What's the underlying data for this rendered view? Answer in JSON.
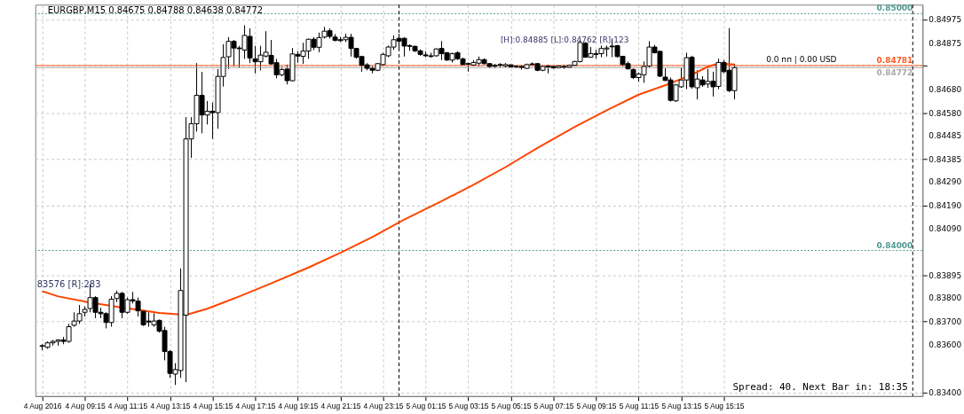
{
  "chart_data": {
    "type": "candlestick",
    "title": "EURGBP,M15  0.84675 0.84788 0.84638 0.84772",
    "x": [
      "2016-08-04T07:15",
      "2016-08-04T07:30",
      "2016-08-04T07:45",
      "2016-08-04T08:00",
      "2016-08-04T08:15",
      "2016-08-04T08:30",
      "2016-08-04T08:45",
      "2016-08-04T09:00",
      "2016-08-04T09:15",
      "2016-08-04T09:30",
      "2016-08-04T09:45",
      "2016-08-04T10:00",
      "2016-08-04T10:15",
      "2016-08-04T10:30",
      "2016-08-04T10:45",
      "2016-08-04T11:00",
      "2016-08-04T11:15",
      "2016-08-04T11:30",
      "2016-08-04T11:45",
      "2016-08-04T12:00",
      "2016-08-04T12:15",
      "2016-08-04T12:30",
      "2016-08-04T12:45",
      "2016-08-04T13:00",
      "2016-08-04T13:15",
      "2016-08-04T13:30",
      "2016-08-04T13:45",
      "2016-08-04T14:00",
      "2016-08-04T14:15",
      "2016-08-04T14:30",
      "2016-08-04T14:45",
      "2016-08-04T15:00",
      "2016-08-04T15:15",
      "2016-08-04T15:30",
      "2016-08-04T15:45",
      "2016-08-04T16:00",
      "2016-08-04T16:15",
      "2016-08-04T16:30",
      "2016-08-04T16:45",
      "2016-08-04T17:00",
      "2016-08-04T17:15",
      "2016-08-04T17:30",
      "2016-08-04T17:45",
      "2016-08-04T18:00",
      "2016-08-04T18:15",
      "2016-08-04T18:30",
      "2016-08-04T18:45",
      "2016-08-04T19:00",
      "2016-08-04T19:15",
      "2016-08-04T19:30",
      "2016-08-04T19:45",
      "2016-08-04T20:00",
      "2016-08-04T20:15",
      "2016-08-04T20:30",
      "2016-08-04T20:45",
      "2016-08-04T21:00",
      "2016-08-04T21:15",
      "2016-08-04T21:30",
      "2016-08-04T21:45",
      "2016-08-04T22:00",
      "2016-08-04T22:15",
      "2016-08-04T22:30",
      "2016-08-04T22:45",
      "2016-08-04T23:00",
      "2016-08-04T23:15",
      "2016-08-04T23:30",
      "2016-08-04T23:45",
      "2016-08-05T00:00",
      "2016-08-05T00:15",
      "2016-08-05T00:30",
      "2016-08-05T00:45",
      "2016-08-05T01:00",
      "2016-08-05T01:15",
      "2016-08-05T01:30",
      "2016-08-05T01:45",
      "2016-08-05T02:00",
      "2016-08-05T02:15",
      "2016-08-05T02:30",
      "2016-08-05T02:45",
      "2016-08-05T03:00",
      "2016-08-05T03:15",
      "2016-08-05T03:30",
      "2016-08-05T03:45",
      "2016-08-05T04:00",
      "2016-08-05T04:15",
      "2016-08-05T04:30",
      "2016-08-05T04:45",
      "2016-08-05T05:00",
      "2016-08-05T05:15",
      "2016-08-05T05:30",
      "2016-08-05T05:45",
      "2016-08-05T06:00",
      "2016-08-05T06:15",
      "2016-08-05T06:30",
      "2016-08-05T06:45",
      "2016-08-05T07:00",
      "2016-08-05T07:15",
      "2016-08-05T07:30",
      "2016-08-05T07:45",
      "2016-08-05T08:00",
      "2016-08-05T08:15",
      "2016-08-05T08:30",
      "2016-08-05T08:45",
      "2016-08-05T09:00",
      "2016-08-05T09:15",
      "2016-08-05T09:30",
      "2016-08-05T09:45",
      "2016-08-05T10:00",
      "2016-08-05T10:15",
      "2016-08-05T10:30",
      "2016-08-05T10:45",
      "2016-08-05T11:00",
      "2016-08-05T11:15",
      "2016-08-05T11:30",
      "2016-08-05T11:45",
      "2016-08-05T12:00",
      "2016-08-05T12:15",
      "2016-08-05T12:30",
      "2016-08-05T12:45",
      "2016-08-05T13:00",
      "2016-08-05T13:15",
      "2016-08-05T13:30",
      "2016-08-05T13:45",
      "2016-08-05T14:00",
      "2016-08-05T14:15",
      "2016-08-05T14:30",
      "2016-08-05T14:45",
      "2016-08-05T15:00",
      "2016-08-05T15:15",
      "2016-08-05T15:30",
      "2016-08-05T15:45"
    ],
    "ohlc": [
      [
        0.83598,
        0.83604,
        0.83579,
        0.83595
      ],
      [
        0.83591,
        0.83616,
        0.83585,
        0.8361
      ],
      [
        0.8361,
        0.83622,
        0.83598,
        0.83616
      ],
      [
        0.83616,
        0.83625,
        0.83598,
        0.83622
      ],
      [
        0.83622,
        0.83635,
        0.83604,
        0.83616
      ],
      [
        0.83616,
        0.8369,
        0.8361,
        0.83678
      ],
      [
        0.83684,
        0.83739,
        0.83678,
        0.83702
      ],
      [
        0.83702,
        0.8377,
        0.8369,
        0.83733
      ],
      [
        0.83739,
        0.83764,
        0.83721,
        0.83751
      ],
      [
        0.83755,
        0.83858,
        0.83739,
        0.83801
      ],
      [
        0.83801,
        0.83807,
        0.83714,
        0.83739
      ],
      [
        0.83739,
        0.83758,
        0.83714,
        0.83733
      ],
      [
        0.83733,
        0.83739,
        0.83671,
        0.83696
      ],
      [
        0.83696,
        0.83807,
        0.83678,
        0.83794
      ],
      [
        0.83797,
        0.83831,
        0.83782,
        0.83819
      ],
      [
        0.83819,
        0.83825,
        0.83714,
        0.83739
      ],
      [
        0.83739,
        0.83801,
        0.83733,
        0.83792
      ],
      [
        0.83792,
        0.83825,
        0.83776,
        0.83787
      ],
      [
        0.83786,
        0.83801,
        0.83721,
        0.83745
      ],
      [
        0.83743,
        0.83748,
        0.83681,
        0.83686
      ],
      [
        0.83702,
        0.83739,
        0.83678,
        0.83698
      ],
      [
        0.83686,
        0.83735,
        0.83678,
        0.83702
      ],
      [
        0.83705,
        0.83708,
        0.83653,
        0.83659
      ],
      [
        0.83662,
        0.83678,
        0.83536,
        0.83573
      ],
      [
        0.83573,
        0.83579,
        0.83462,
        0.83481
      ],
      [
        0.83478,
        0.83524,
        0.83432,
        0.83497
      ],
      [
        0.83493,
        0.83924,
        0.83462,
        0.83831
      ],
      [
        0.83727,
        0.84563,
        0.83444,
        0.84471
      ],
      [
        0.84471,
        0.84563,
        0.84391,
        0.84535
      ],
      [
        0.84535,
        0.84791,
        0.84502,
        0.84655
      ],
      [
        0.84655,
        0.84754,
        0.84495,
        0.84572
      ],
      [
        0.84572,
        0.84631,
        0.84532,
        0.84588
      ],
      [
        0.84588,
        0.84625,
        0.84471,
        0.84582
      ],
      [
        0.84582,
        0.84766,
        0.84514,
        0.84735
      ],
      [
        0.84735,
        0.84871,
        0.84692,
        0.84815
      ],
      [
        0.84818,
        0.84901,
        0.84766,
        0.84883
      ],
      [
        0.84883,
        0.84889,
        0.84778,
        0.84855
      ],
      [
        0.84855,
        0.84864,
        0.84772,
        0.84852
      ],
      [
        0.84846,
        0.84951,
        0.84809,
        0.84908
      ],
      [
        0.84904,
        0.84938,
        0.84791,
        0.84813
      ],
      [
        0.84809,
        0.84864,
        0.84748,
        0.84797
      ],
      [
        0.84797,
        0.84864,
        0.8476,
        0.84825
      ],
      [
        0.84821,
        0.84926,
        0.84815,
        0.84837
      ],
      [
        0.84824,
        0.84889,
        0.84785,
        0.84788
      ],
      [
        0.84793,
        0.84809,
        0.84727,
        0.84742
      ],
      [
        0.84742,
        0.84776,
        0.84735,
        0.84764
      ],
      [
        0.84766,
        0.84785,
        0.84701,
        0.84717
      ],
      [
        0.84717,
        0.84855,
        0.84714,
        0.8483
      ],
      [
        0.84828,
        0.84842,
        0.84793,
        0.84821
      ],
      [
        0.8482,
        0.84877,
        0.84788,
        0.84842
      ],
      [
        0.84842,
        0.84895,
        0.84809,
        0.84892
      ],
      [
        0.84892,
        0.84901,
        0.84846,
        0.84858
      ],
      [
        0.84858,
        0.8492,
        0.84837,
        0.84899
      ],
      [
        0.84901,
        0.84944,
        0.84895,
        0.84926
      ],
      [
        0.84928,
        0.84938,
        0.84895,
        0.84904
      ],
      [
        0.84901,
        0.84914,
        0.84883,
        0.84887
      ],
      [
        0.8489,
        0.84902,
        0.8488,
        0.84886
      ],
      [
        0.8489,
        0.84915,
        0.8488,
        0.849
      ],
      [
        0.849,
        0.84915,
        0.84819,
        0.84853
      ],
      [
        0.84853,
        0.84855,
        0.8481,
        0.84816
      ],
      [
        0.84819,
        0.84822,
        0.84755,
        0.84782
      ],
      [
        0.84784,
        0.84791,
        0.84761,
        0.84769
      ],
      [
        0.84769,
        0.84779,
        0.84748,
        0.84761
      ],
      [
        0.84761,
        0.84791,
        0.84757,
        0.84789
      ],
      [
        0.84785,
        0.84835,
        0.84779,
        0.84828
      ],
      [
        0.84822,
        0.84865,
        0.84816,
        0.84859
      ],
      [
        0.84859,
        0.84908,
        0.84847,
        0.8489
      ],
      [
        0.84896,
        0.84915,
        0.84847,
        0.84884
      ],
      [
        0.84896,
        0.849,
        0.84819,
        0.84863
      ],
      [
        0.84865,
        0.84871,
        0.84843,
        0.84862
      ],
      [
        0.84862,
        0.84865,
        0.84838,
        0.84843
      ],
      [
        0.84843,
        0.84849,
        0.84822,
        0.84828
      ],
      [
        0.84826,
        0.84841,
        0.84816,
        0.84822
      ],
      [
        0.84822,
        0.84835,
        0.84814,
        0.84819
      ],
      [
        0.84822,
        0.84853,
        0.84819,
        0.84851
      ],
      [
        0.84853,
        0.84884,
        0.84804,
        0.84831
      ],
      [
        0.84835,
        0.84838,
        0.84801,
        0.84804
      ],
      [
        0.84804,
        0.84835,
        0.84794,
        0.84831
      ],
      [
        0.84835,
        0.84841,
        0.84804,
        0.8481
      ],
      [
        0.84809,
        0.84814,
        0.84782,
        0.84785
      ],
      [
        0.84789,
        0.84794,
        0.84755,
        0.84787
      ],
      [
        0.84783,
        0.84804,
        0.84779,
        0.84794
      ],
      [
        0.84791,
        0.84819,
        0.84777,
        0.84806
      ],
      [
        0.84806,
        0.84811,
        0.84785,
        0.84789
      ],
      [
        0.84789,
        0.84791,
        0.84769,
        0.84777
      ],
      [
        0.84782,
        0.84788,
        0.84769,
        0.84778
      ],
      [
        0.84785,
        0.84791,
        0.84773,
        0.84782
      ],
      [
        0.84779,
        0.84791,
        0.84773,
        0.84785
      ],
      [
        0.84784,
        0.84785,
        0.84771,
        0.84776
      ],
      [
        0.84778,
        0.84782,
        0.84769,
        0.84776
      ],
      [
        0.84777,
        0.84783,
        0.84764,
        0.84773
      ],
      [
        0.84769,
        0.84789,
        0.84767,
        0.84785
      ],
      [
        0.84788,
        0.84794,
        0.84779,
        0.84785
      ],
      [
        0.84789,
        0.84791,
        0.84757,
        0.84761
      ],
      [
        0.84761,
        0.84779,
        0.84757,
        0.84777
      ],
      [
        0.84779,
        0.84785,
        0.84748,
        0.84775
      ],
      [
        0.84777,
        0.84779,
        0.84767,
        0.84771
      ],
      [
        0.84772,
        0.84782,
        0.84769,
        0.84779
      ],
      [
        0.84777,
        0.84785,
        0.84767,
        0.84774
      ],
      [
        0.84774,
        0.84785,
        0.84771,
        0.84782
      ],
      [
        0.84782,
        0.84801,
        0.84779,
        0.84798
      ],
      [
        0.84798,
        0.8489,
        0.84794,
        0.84878
      ],
      [
        0.84875,
        0.8488,
        0.84814,
        0.84816
      ],
      [
        0.84816,
        0.84859,
        0.84814,
        0.84831
      ],
      [
        0.84831,
        0.84847,
        0.8481,
        0.84828
      ],
      [
        0.84831,
        0.84865,
        0.84816,
        0.84853
      ],
      [
        0.84851,
        0.84865,
        0.84819,
        0.84855
      ],
      [
        0.84863,
        0.84892,
        0.84816,
        0.8486
      ],
      [
        0.84865,
        0.84868,
        0.84814,
        0.84819
      ],
      [
        0.8482,
        0.84822,
        0.84777,
        0.84785
      ],
      [
        0.84789,
        0.84798,
        0.84764,
        0.84767
      ],
      [
        0.84764,
        0.84769,
        0.84724,
        0.8473
      ],
      [
        0.8473,
        0.84752,
        0.84712,
        0.84745
      ],
      [
        0.84742,
        0.84798,
        0.84708,
        0.84777
      ],
      [
        0.84779,
        0.84884,
        0.84773,
        0.84859
      ],
      [
        0.84859,
        0.84868,
        0.84831,
        0.84835
      ],
      [
        0.84841,
        0.84843,
        0.84732,
        0.84736
      ],
      [
        0.84732,
        0.84769,
        0.84715,
        0.84718
      ],
      [
        0.8472,
        0.8473,
        0.84629,
        0.84634
      ],
      [
        0.84632,
        0.84703,
        0.84627,
        0.84699
      ],
      [
        0.84691,
        0.84773,
        0.84687,
        0.8472
      ],
      [
        0.8472,
        0.84835,
        0.84681,
        0.84814
      ],
      [
        0.84816,
        0.84822,
        0.84683,
        0.84691
      ],
      [
        0.84687,
        0.84761,
        0.84638,
        0.84724
      ],
      [
        0.8472,
        0.84736,
        0.84691,
        0.84699
      ],
      [
        0.84703,
        0.84767,
        0.84687,
        0.84714
      ],
      [
        0.84715,
        0.84755,
        0.8465,
        0.84691
      ],
      [
        0.84693,
        0.8481,
        0.84681,
        0.84794
      ],
      [
        0.84794,
        0.84804,
        0.84748,
        0.84755
      ],
      [
        0.84761,
        0.84939,
        0.84669,
        0.84675
      ],
      [
        0.84675,
        0.84788,
        0.84638,
        0.84772
      ]
    ],
    "series": [
      {
        "type": "line",
        "color": "#ff4500",
        "x": [
          "2016-08-04T07:15",
          "2016-08-04T08:00",
          "2016-08-04T09:30",
          "2016-08-04T10:45",
          "2016-08-04T12:45",
          "2016-08-04T14:00",
          "2016-08-04T15:00",
          "2016-08-04T16:30",
          "2016-08-04T18:00",
          "2016-08-04T19:45",
          "2016-08-04T21:15",
          "2016-08-04T22:45",
          "2016-08-05T00:15",
          "2016-08-05T02:00",
          "2016-08-05T03:30",
          "2016-08-05T05:00",
          "2016-08-05T06:30",
          "2016-08-05T08:15",
          "2016-08-05T09:45",
          "2016-08-05T11:15",
          "2016-08-05T12:45",
          "2016-08-05T13:45",
          "2016-08-05T14:30",
          "2016-08-05T15:00",
          "2016-08-05T15:45"
        ],
        "values": [
          0.83828,
          0.83806,
          0.8378,
          0.83762,
          0.83736,
          0.83728,
          0.83754,
          0.83806,
          0.83861,
          0.83928,
          0.8399,
          0.84057,
          0.84131,
          0.84208,
          0.84278,
          0.84352,
          0.84433,
          0.84522,
          0.84592,
          0.84658,
          0.84706,
          0.84743,
          0.84776,
          0.8479,
          0.84785
        ]
      }
    ],
    "xlim": [
      "2016-08-04T07:08",
      "2016-08-06T00:22"
    ],
    "xticks": [
      {
        "value": "2016-08-04T07:15",
        "label": "4 Aug 2016"
      },
      {
        "value": "2016-08-04T09:15",
        "label": "4 Aug 09:15"
      },
      {
        "value": "2016-08-04T11:15",
        "label": "4 Aug 11:15"
      },
      {
        "value": "2016-08-04T13:15",
        "label": "4 Aug 13:15"
      },
      {
        "value": "2016-08-04T15:15",
        "label": "4 Aug 15:15"
      },
      {
        "value": "2016-08-04T17:15",
        "label": "4 Aug 17:15"
      },
      {
        "value": "2016-08-04T19:15",
        "label": "4 Aug 19:15"
      },
      {
        "value": "2016-08-04T21:15",
        "label": "4 Aug 21:15"
      },
      {
        "value": "2016-08-04T23:15",
        "label": "4 Aug 23:15"
      },
      {
        "value": "2016-08-05T01:15",
        "label": "5 Aug 01:15"
      },
      {
        "value": "2016-08-05T03:15",
        "label": "5 Aug 03:15"
      },
      {
        "value": "2016-08-05T05:15",
        "label": "5 Aug 05:15"
      },
      {
        "value": "2016-08-05T07:15",
        "label": "5 Aug 07:15"
      },
      {
        "value": "2016-08-05T09:15",
        "label": "5 Aug 09:15"
      },
      {
        "value": "2016-08-05T11:15",
        "label": "5 Aug 11:15"
      },
      {
        "value": "2016-08-05T13:15",
        "label": "5 Aug 13:15"
      },
      {
        "value": "2016-08-05T15:15",
        "label": "5 Aug 15:15"
      }
    ],
    "ylim": [
      0.83385,
      0.85038
    ],
    "yticks": [
      {
        "value": 0.84975,
        "label": "0.84975"
      },
      {
        "value": 0.84875,
        "label": "0.84875"
      },
      {
        "value": 0.8478,
        "label": null
      },
      {
        "value": 0.8468,
        "label": "0.84680"
      },
      {
        "value": 0.8458,
        "label": "0.84580"
      },
      {
        "value": 0.84485,
        "label": "0.84485"
      },
      {
        "value": 0.84385,
        "label": "0.84385"
      },
      {
        "value": 0.8429,
        "label": "0.84290"
      },
      {
        "value": 0.8419,
        "label": "0.84190"
      },
      {
        "value": 0.8409,
        "label": "0.84090"
      },
      {
        "value": 0.83895,
        "label": "0.83895"
      },
      {
        "value": 0.838,
        "label": "0.83800"
      },
      {
        "value": 0.837,
        "label": "0.83700"
      },
      {
        "value": 0.836,
        "label": "0.83600"
      },
      {
        "value": 0.834,
        "label": "0.83400"
      }
    ],
    "grid": true,
    "ref_lines": [
      {
        "axis": "y",
        "value": 0.85,
        "label": "0.85000",
        "color": "#4f9a94",
        "line_style": "dotted"
      },
      {
        "axis": "y",
        "value": 0.84781,
        "label": "0.84781",
        "color": "#ff5a1f",
        "line_style": "solid"
      },
      {
        "axis": "y",
        "value": 0.84772,
        "label": "0.84772",
        "color": "#a8a8a8",
        "line_style": "solid"
      },
      {
        "axis": "y",
        "value": 0.84,
        "label": "0.84000",
        "color": "#4f9a94",
        "line_style": "dotted"
      },
      {
        "axis": "x",
        "value": "2016-08-05T00:00",
        "label": null,
        "color": "#000000",
        "line_style": "dashed"
      },
      {
        "axis": "x",
        "value": "2016-08-06T00:07",
        "label": null,
        "color": "#000000",
        "line_style": "dashed"
      }
    ],
    "annotations": [
      "83576 [R]:283",
      "[H]:0.84885 [L]:0.84762 [R]:123",
      "0.0 пп | 0.00 USD",
      "Spread: 40. Next Bar in: 18:35"
    ]
  }
}
